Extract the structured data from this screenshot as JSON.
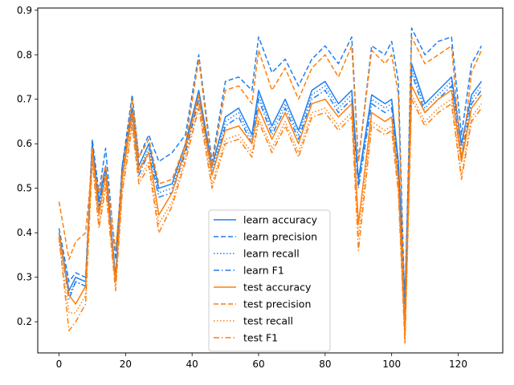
{
  "chart_data": {
    "type": "line",
    "title": "",
    "xlabel": "",
    "ylabel": "",
    "xlim": [
      -6.4,
      133.4
    ],
    "ylim": [
      0.13,
      0.905
    ],
    "xticks": [
      0,
      20,
      40,
      60,
      80,
      100,
      120
    ],
    "yticks": [
      0.2,
      0.3,
      0.4,
      0.5,
      0.6,
      0.7,
      0.8,
      0.9
    ],
    "grid": false,
    "legend_position": "lower center",
    "colors": {
      "learn": "#1f7ff0",
      "test": "#ff7f0e"
    },
    "x": [
      0,
      3,
      5,
      8,
      10,
      12,
      14,
      17,
      19,
      22,
      24,
      27,
      30,
      34,
      38,
      42,
      46,
      50,
      54,
      58,
      60,
      64,
      68,
      72,
      76,
      80,
      84,
      88,
      90,
      94,
      98,
      100,
      102,
      104,
      106,
      110,
      114,
      118,
      121,
      124,
      127
    ],
    "series": [
      {
        "name": "learn accuracy",
        "group": "learn",
        "dash": "solid",
        "values": [
          0.4,
          0.27,
          0.3,
          0.29,
          0.6,
          0.47,
          0.55,
          0.3,
          0.55,
          0.68,
          0.55,
          0.6,
          0.5,
          0.51,
          0.6,
          0.72,
          0.55,
          0.66,
          0.68,
          0.62,
          0.72,
          0.64,
          0.7,
          0.63,
          0.72,
          0.74,
          0.69,
          0.72,
          0.52,
          0.71,
          0.69,
          0.7,
          0.56,
          0.25,
          0.78,
          0.69,
          0.72,
          0.75,
          0.6,
          0.71,
          0.74
        ]
      },
      {
        "name": "learn precision",
        "group": "learn",
        "dash": "dashed",
        "values": [
          0.41,
          0.29,
          0.31,
          0.3,
          0.61,
          0.49,
          0.59,
          0.34,
          0.55,
          0.71,
          0.57,
          0.62,
          0.56,
          0.58,
          0.62,
          0.8,
          0.56,
          0.74,
          0.75,
          0.72,
          0.84,
          0.76,
          0.79,
          0.73,
          0.79,
          0.82,
          0.78,
          0.84,
          0.56,
          0.82,
          0.8,
          0.83,
          0.74,
          0.22,
          0.86,
          0.8,
          0.83,
          0.84,
          0.62,
          0.78,
          0.82
        ]
      },
      {
        "name": "learn recall",
        "group": "learn",
        "dash": "dotted",
        "values": [
          0.39,
          0.26,
          0.29,
          0.28,
          0.59,
          0.46,
          0.54,
          0.29,
          0.54,
          0.67,
          0.54,
          0.59,
          0.49,
          0.5,
          0.59,
          0.71,
          0.54,
          0.65,
          0.67,
          0.61,
          0.71,
          0.63,
          0.69,
          0.62,
          0.71,
          0.73,
          0.68,
          0.71,
          0.51,
          0.7,
          0.68,
          0.69,
          0.55,
          0.24,
          0.77,
          0.68,
          0.71,
          0.74,
          0.59,
          0.7,
          0.73
        ]
      },
      {
        "name": "learn F1",
        "group": "learn",
        "dash": "dashdot",
        "values": [
          0.4,
          0.25,
          0.29,
          0.28,
          0.59,
          0.45,
          0.54,
          0.29,
          0.54,
          0.66,
          0.53,
          0.58,
          0.48,
          0.49,
          0.58,
          0.7,
          0.53,
          0.64,
          0.66,
          0.6,
          0.7,
          0.62,
          0.68,
          0.61,
          0.7,
          0.72,
          0.67,
          0.7,
          0.5,
          0.69,
          0.67,
          0.68,
          0.54,
          0.22,
          0.76,
          0.67,
          0.7,
          0.73,
          0.57,
          0.69,
          0.72
        ]
      },
      {
        "name": "test accuracy",
        "group": "test",
        "dash": "solid",
        "values": [
          0.4,
          0.26,
          0.24,
          0.28,
          0.59,
          0.44,
          0.53,
          0.29,
          0.52,
          0.67,
          0.54,
          0.58,
          0.44,
          0.49,
          0.59,
          0.71,
          0.53,
          0.63,
          0.64,
          0.6,
          0.68,
          0.61,
          0.67,
          0.6,
          0.69,
          0.7,
          0.66,
          0.69,
          0.42,
          0.67,
          0.65,
          0.66,
          0.52,
          0.17,
          0.73,
          0.67,
          0.7,
          0.72,
          0.56,
          0.68,
          0.71
        ]
      },
      {
        "name": "test precision",
        "group": "test",
        "dash": "dashed",
        "values": [
          0.47,
          0.34,
          0.38,
          0.4,
          0.56,
          0.49,
          0.55,
          0.36,
          0.53,
          0.7,
          0.57,
          0.61,
          0.51,
          0.52,
          0.6,
          0.79,
          0.55,
          0.72,
          0.73,
          0.69,
          0.81,
          0.72,
          0.77,
          0.7,
          0.77,
          0.8,
          0.75,
          0.82,
          0.56,
          0.81,
          0.78,
          0.8,
          0.71,
          0.18,
          0.84,
          0.78,
          0.8,
          0.82,
          0.56,
          0.76,
          0.81
        ]
      },
      {
        "name": "test recall",
        "group": "test",
        "dash": "dotted",
        "values": [
          0.38,
          0.22,
          0.22,
          0.26,
          0.57,
          0.42,
          0.51,
          0.28,
          0.5,
          0.65,
          0.52,
          0.56,
          0.42,
          0.47,
          0.57,
          0.69,
          0.51,
          0.61,
          0.62,
          0.58,
          0.66,
          0.59,
          0.65,
          0.58,
          0.67,
          0.68,
          0.64,
          0.67,
          0.39,
          0.65,
          0.63,
          0.64,
          0.5,
          0.16,
          0.71,
          0.65,
          0.68,
          0.7,
          0.53,
          0.66,
          0.69
        ]
      },
      {
        "name": "test F1",
        "group": "test",
        "dash": "dashdot",
        "values": [
          0.39,
          0.18,
          0.2,
          0.24,
          0.56,
          0.41,
          0.5,
          0.27,
          0.49,
          0.64,
          0.51,
          0.55,
          0.4,
          0.46,
          0.56,
          0.68,
          0.5,
          0.6,
          0.61,
          0.57,
          0.65,
          0.58,
          0.64,
          0.57,
          0.66,
          0.67,
          0.63,
          0.66,
          0.36,
          0.64,
          0.62,
          0.63,
          0.49,
          0.15,
          0.7,
          0.64,
          0.67,
          0.69,
          0.52,
          0.65,
          0.68
        ]
      }
    ]
  }
}
